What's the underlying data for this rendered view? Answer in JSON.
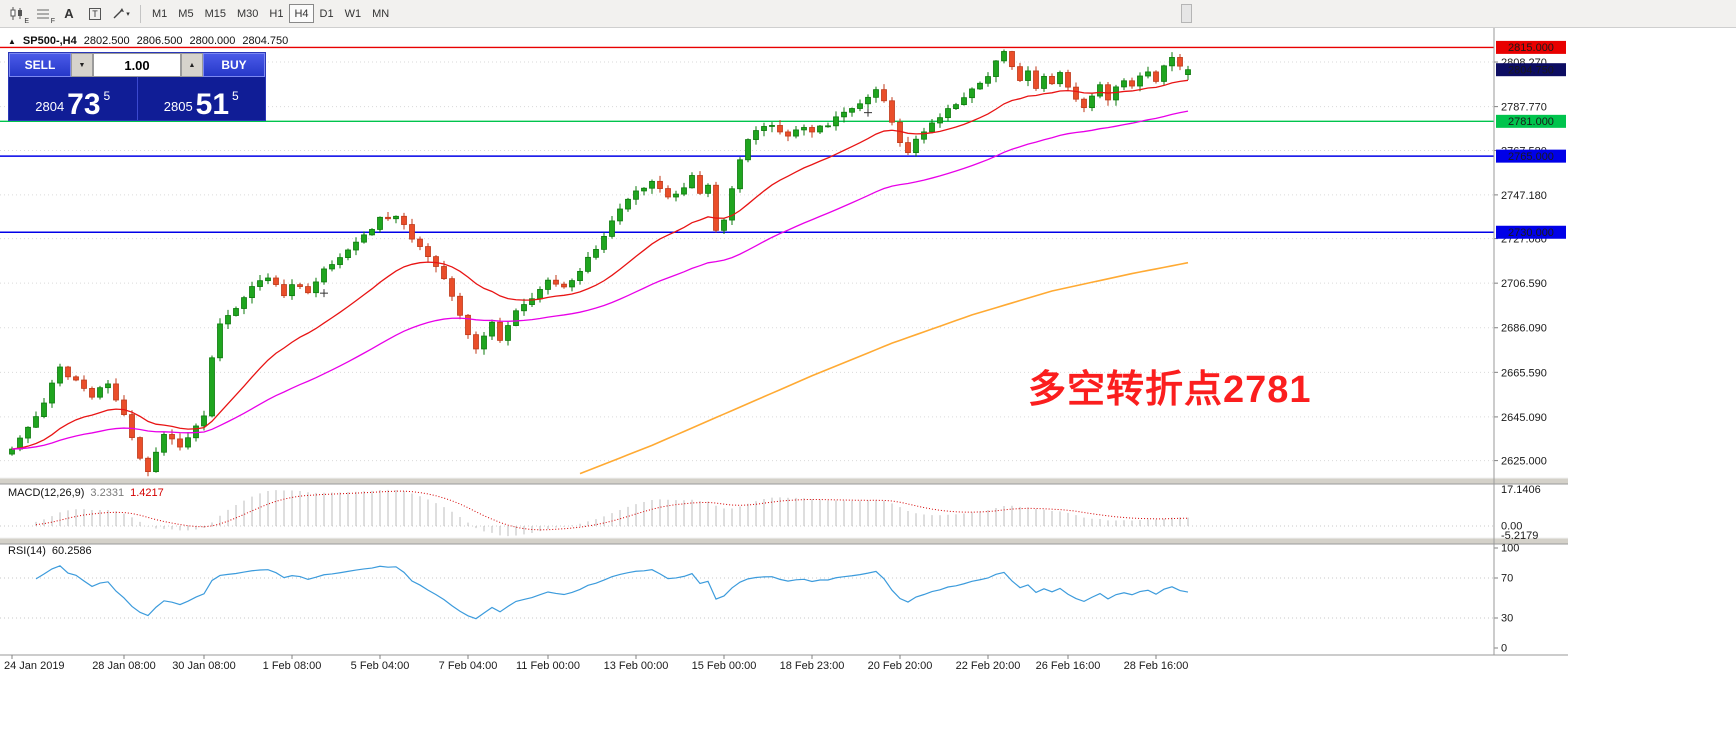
{
  "toolbar": {
    "icons": [
      {
        "name": "charts-icon",
        "badge": "E"
      },
      {
        "name": "profiles-icon",
        "badge": "F"
      },
      {
        "name": "text-tool-icon",
        "badge": "A"
      },
      {
        "name": "label-tool-icon",
        "badge": "T"
      },
      {
        "name": "line-tool-icon",
        "badge": "▾"
      }
    ],
    "timeframes": [
      {
        "label": "M1",
        "active": false
      },
      {
        "label": "M5",
        "active": false
      },
      {
        "label": "M15",
        "active": false
      },
      {
        "label": "M30",
        "active": false
      },
      {
        "label": "H1",
        "active": false
      },
      {
        "label": "H4",
        "active": true
      },
      {
        "label": "D1",
        "active": false
      },
      {
        "label": "W1",
        "active": false
      },
      {
        "label": "MN",
        "active": false
      }
    ]
  },
  "chart": {
    "symbol_line": {
      "marker": "▲",
      "symbol": "SP500-,H4",
      "open": "2802.500",
      "high": "2806.500",
      "low": "2800.000",
      "close": "2804.750"
    },
    "annotation": {
      "text": "多空转折点2781"
    },
    "hlines": [
      {
        "price": 2815.0,
        "label": "2815.000",
        "color": "#e80000"
      },
      {
        "price": 2781.0,
        "label": "2781.000",
        "color": "#00c44d"
      },
      {
        "price": 2765.0,
        "label": "2765.000",
        "color": "#0000e8"
      },
      {
        "price": 2730.0,
        "label": "2730.000",
        "color": "#0000e8"
      }
    ],
    "current_price": {
      "value": 2804.75,
      "label": "2804.750"
    }
  },
  "trade_panel": {
    "sell_label": "SELL",
    "buy_label": "BUY",
    "volume": "1.00",
    "sell_price": {
      "stem": "2804",
      "big": "73",
      "sup": "5"
    },
    "buy_price": {
      "stem": "2805",
      "big": "51",
      "sup": "5"
    }
  },
  "indicators": {
    "macd": {
      "label": "MACD(12,26,9)",
      "value1": "3.2331",
      "value2": "1.4217",
      "axis": [
        "17.1406",
        "0.00",
        "-5.2179"
      ]
    },
    "rsi": {
      "label": "RSI(14)",
      "value": "60.2586",
      "axis": [
        "100",
        "70",
        "30",
        "0"
      ]
    }
  },
  "colors": {
    "up": "#1fa51f",
    "up_stroke": "#0c7a0c",
    "down": "#ea4e2a",
    "down_stroke": "#bf3a1a",
    "ma_fast": "#e81414",
    "ma_mid": "#e800e8",
    "ma_slow": "#ffaa33",
    "macd_hist": "#bdbdbd",
    "macd_signal": "#d40000",
    "rsi": "#3c9bdc",
    "grid": "#dadada",
    "current_box": "#0d0d62",
    "annotation": "#fb1e1e"
  },
  "chart_data": {
    "type": "candlestick",
    "symbol": "SP500-",
    "timeframe": "H4",
    "candle_count": 148,
    "seed": 9,
    "last_ohlc": {
      "open": 2802.5,
      "high": 2806.5,
      "low": 2800.0,
      "close": 2804.75
    },
    "y_axis": {
      "range": [
        2617,
        2823
      ],
      "ticks": [
        {
          "v": 2808.27,
          "label": "2808.270"
        },
        {
          "v": 2787.77,
          "label": "2787.770"
        },
        {
          "v": 2767.58,
          "label": "2767.580"
        },
        {
          "v": 2747.18,
          "label": "2747.180"
        },
        {
          "v": 2727.08,
          "label": "2727.080"
        },
        {
          "v": 2706.59,
          "label": "2706.590"
        },
        {
          "v": 2686.09,
          "label": "2686.090"
        },
        {
          "v": 2665.59,
          "label": "2665.590"
        },
        {
          "v": 2645.09,
          "label": "2645.090"
        },
        {
          "v": 2625.0,
          "label": "2625.000"
        }
      ]
    },
    "x_axis": {
      "ticks": [
        {
          "i": 0,
          "label": "24 Jan 2019"
        },
        {
          "i": 14,
          "label": "28 Jan 08:00"
        },
        {
          "i": 24,
          "label": "30 Jan 08:00"
        },
        {
          "i": 35,
          "label": "1 Feb 08:00"
        },
        {
          "i": 46,
          "label": "5 Feb 04:00"
        },
        {
          "i": 57,
          "label": "7 Feb 04:00"
        },
        {
          "i": 67,
          "label": "11 Feb 00:00"
        },
        {
          "i": 78,
          "label": "13 Feb 00:00"
        },
        {
          "i": 89,
          "label": "15 Feb 00:00"
        },
        {
          "i": 100,
          "label": "18 Feb 23:00"
        },
        {
          "i": 111,
          "label": "20 Feb 20:00"
        },
        {
          "i": 122,
          "label": "22 Feb 20:00"
        },
        {
          "i": 132,
          "label": "26 Feb 16:00"
        },
        {
          "i": 143,
          "label": "28 Feb 16:00"
        }
      ]
    },
    "horizontal_levels": [
      2815,
      2781,
      2765,
      2730
    ],
    "price_anchors": [
      [
        0,
        2630
      ],
      [
        2,
        2640
      ],
      [
        4,
        2652
      ],
      [
        6,
        2668
      ],
      [
        8,
        2661
      ],
      [
        10,
        2655
      ],
      [
        12,
        2660
      ],
      [
        14,
        2646
      ],
      [
        16,
        2626
      ],
      [
        17,
        2619
      ],
      [
        19,
        2638
      ],
      [
        21,
        2631
      ],
      [
        23,
        2640
      ],
      [
        24,
        2646
      ],
      [
        25,
        2672
      ],
      [
        26,
        2688
      ],
      [
        28,
        2696
      ],
      [
        30,
        2704
      ],
      [
        32,
        2710
      ],
      [
        34,
        2701
      ],
      [
        35,
        2706
      ],
      [
        37,
        2702
      ],
      [
        39,
        2712
      ],
      [
        41,
        2718
      ],
      [
        43,
        2725
      ],
      [
        45,
        2732
      ],
      [
        46,
        2736
      ],
      [
        48,
        2738
      ],
      [
        50,
        2728
      ],
      [
        52,
        2720
      ],
      [
        54,
        2708
      ],
      [
        56,
        2692
      ],
      [
        57,
        2683
      ],
      [
        58,
        2677
      ],
      [
        60,
        2688
      ],
      [
        61,
        2681
      ],
      [
        63,
        2694
      ],
      [
        65,
        2700
      ],
      [
        67,
        2708
      ],
      [
        69,
        2704
      ],
      [
        71,
        2713
      ],
      [
        73,
        2722
      ],
      [
        75,
        2735
      ],
      [
        77,
        2744
      ],
      [
        78,
        2748
      ],
      [
        80,
        2753
      ],
      [
        82,
        2746
      ],
      [
        84,
        2750
      ],
      [
        85,
        2755
      ],
      [
        86,
        2748
      ],
      [
        87,
        2752
      ],
      [
        88,
        2731
      ],
      [
        89,
        2735
      ],
      [
        90,
        2749
      ],
      [
        91,
        2763
      ],
      [
        92,
        2772
      ],
      [
        93,
        2776
      ],
      [
        95,
        2779
      ],
      [
        97,
        2774
      ],
      [
        99,
        2779
      ],
      [
        100,
        2776
      ],
      [
        102,
        2780
      ],
      [
        104,
        2784
      ],
      [
        106,
        2789
      ],
      [
        108,
        2796
      ],
      [
        109,
        2790
      ],
      [
        110,
        2781
      ],
      [
        111,
        2772
      ],
      [
        112,
        2766
      ],
      [
        113,
        2773
      ],
      [
        115,
        2780
      ],
      [
        117,
        2786
      ],
      [
        119,
        2793
      ],
      [
        121,
        2799
      ],
      [
        122,
        2801
      ],
      [
        123,
        2808
      ],
      [
        124,
        2813
      ],
      [
        125,
        2806
      ],
      [
        126,
        2799
      ],
      [
        127,
        2803
      ],
      [
        128,
        2797
      ],
      [
        129,
        2801
      ],
      [
        130,
        2798
      ],
      [
        131,
        2803
      ],
      [
        132,
        2796
      ],
      [
        133,
        2790
      ],
      [
        134,
        2787
      ],
      [
        135,
        2793
      ],
      [
        136,
        2797
      ],
      [
        137,
        2792
      ],
      [
        138,
        2796
      ],
      [
        139,
        2800
      ],
      [
        140,
        2797
      ],
      [
        141,
        2801
      ],
      [
        142,
        2804
      ],
      [
        143,
        2800
      ],
      [
        144,
        2806
      ],
      [
        145,
        2810
      ],
      [
        146,
        2807
      ],
      [
        147,
        2804.75
      ]
    ],
    "moving_averages": [
      {
        "name": "ma-fast",
        "type": "ema",
        "period": 21
      },
      {
        "name": "ma-mid",
        "type": "ema",
        "period": 55
      },
      {
        "name": "ma-slow",
        "type": "anchors",
        "points": [
          [
            71,
            2619
          ],
          [
            80,
            2632
          ],
          [
            90,
            2648
          ],
          [
            100,
            2664
          ],
          [
            110,
            2679
          ],
          [
            120,
            2692
          ],
          [
            130,
            2703
          ],
          [
            140,
            2711
          ],
          [
            147,
            2716
          ]
        ]
      }
    ],
    "markers": [
      {
        "i": 39,
        "price": 2702
      },
      {
        "i": 107,
        "price": 2785
      }
    ],
    "macd": {
      "fast": 12,
      "slow": 26,
      "signal": 9,
      "display_max": 16.8
    },
    "rsi": {
      "period": 14,
      "levels": [
        70,
        30
      ]
    }
  }
}
